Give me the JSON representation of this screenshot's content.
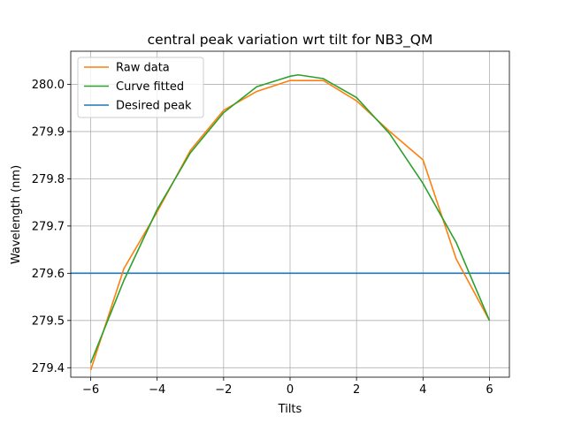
{
  "chart_data": {
    "type": "line",
    "title": "central peak variation wrt tilt for NB3_QM",
    "xlabel": "Tilts",
    "ylabel": "Wavelength (nm)",
    "xlim": [
      -6.6,
      6.6
    ],
    "ylim": [
      279.38,
      280.07
    ],
    "xticks": [
      -6,
      -4,
      -2,
      0,
      2,
      4,
      6
    ],
    "xtick_labels": [
      "−6",
      "−4",
      "−2",
      "0",
      "2",
      "4",
      "6"
    ],
    "yticks": [
      279.4,
      279.5,
      279.6,
      279.7,
      279.8,
      279.9,
      280.0
    ],
    "ytick_labels": [
      "279.4",
      "279.5",
      "279.6",
      "279.7",
      "279.8",
      "279.9",
      "280.0"
    ],
    "grid": true,
    "legend_position": "upper-left",
    "series": [
      {
        "name": "Raw data",
        "color": "#ff7f0e",
        "x": [
          -6,
          -5,
          -4,
          -3,
          -2,
          -1,
          0,
          1,
          2,
          3,
          4,
          5,
          6
        ],
        "y": [
          279.395,
          279.61,
          279.73,
          279.86,
          279.945,
          279.985,
          280.008,
          280.008,
          279.965,
          279.9,
          279.84,
          279.63,
          279.5
        ]
      },
      {
        "name": "Curve fitted",
        "color": "#2ca02c",
        "x": [
          -6,
          -5,
          -4,
          -3,
          -2,
          -1,
          0,
          0.25,
          1,
          2,
          3,
          4,
          5,
          6
        ],
        "y": [
          279.41,
          279.585,
          279.735,
          279.855,
          279.94,
          279.995,
          280.017,
          280.02,
          280.012,
          279.972,
          279.895,
          279.79,
          279.665,
          279.5
        ]
      },
      {
        "name": "Desired peak",
        "color": "#1f77b4",
        "type": "hline",
        "y": 279.6
      }
    ]
  }
}
